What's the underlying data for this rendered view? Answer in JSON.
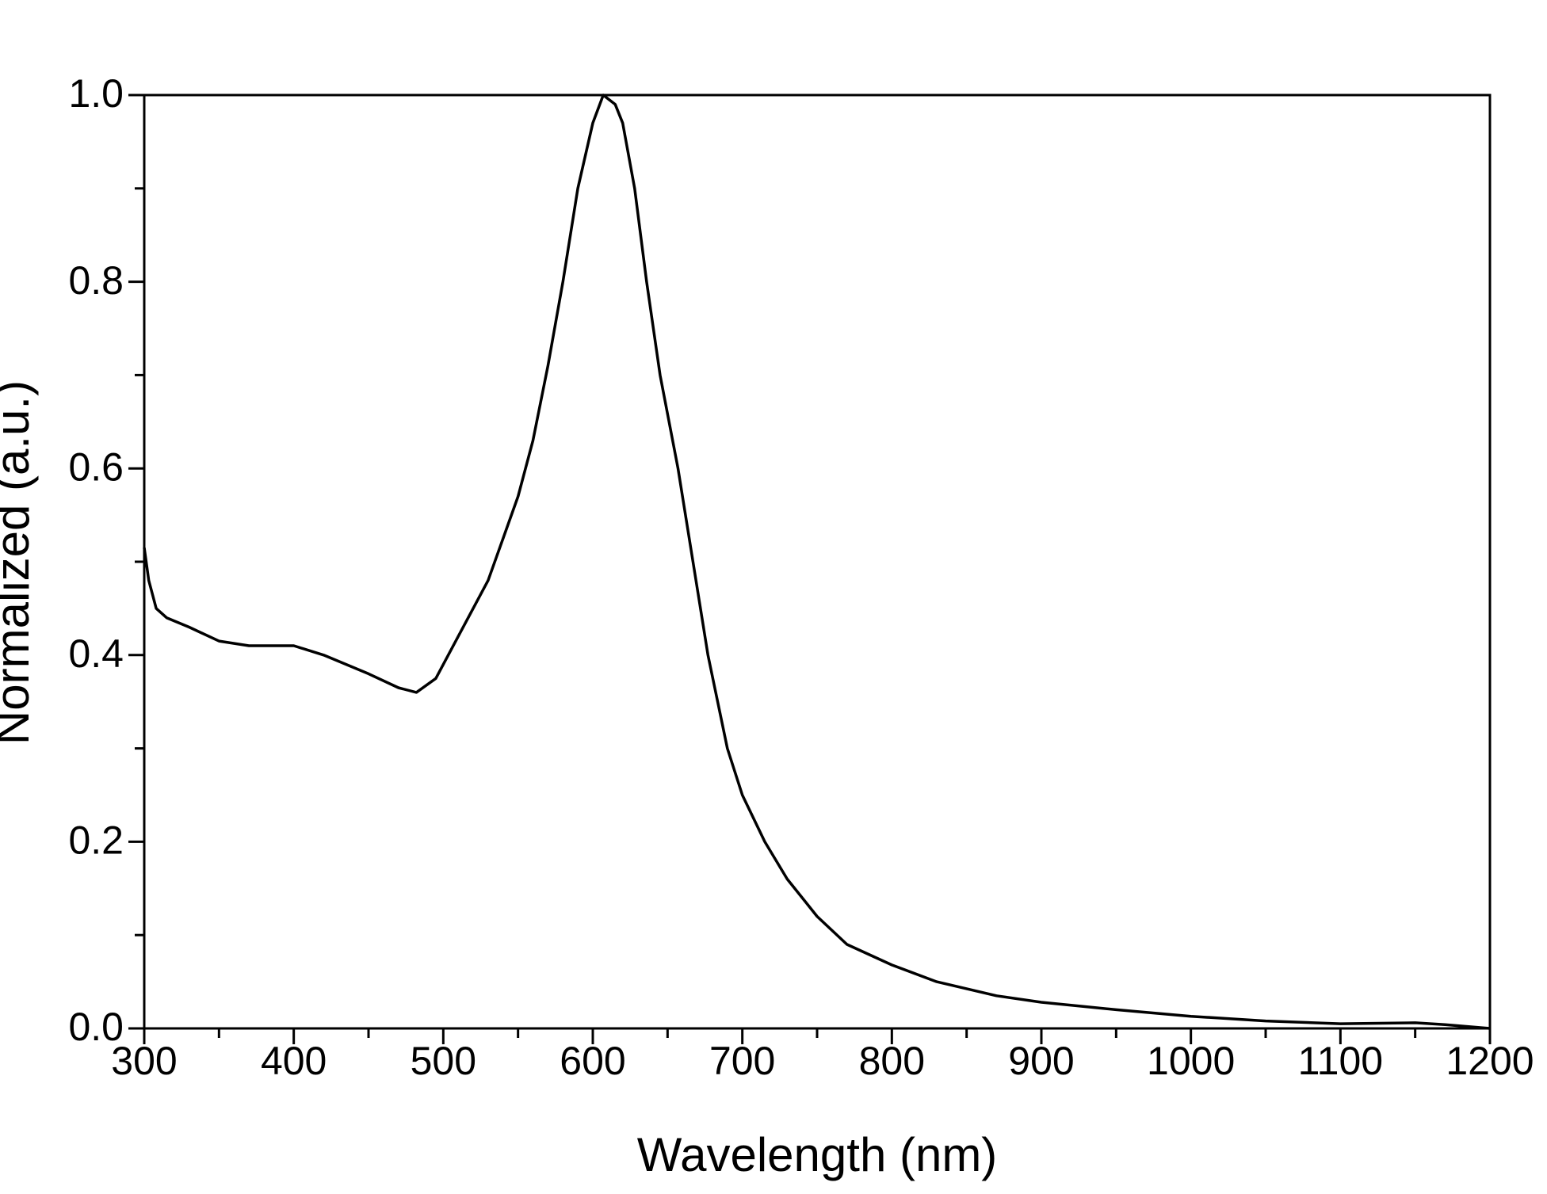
{
  "chart_data": {
    "type": "line",
    "xlabel": "Wavelength (nm)",
    "ylabel": "Normalized (a.u.)",
    "x": [
      300,
      303,
      308,
      315,
      330,
      350,
      370,
      400,
      420,
      450,
      470,
      482,
      495,
      510,
      530,
      550,
      560,
      570,
      580,
      590,
      600,
      607,
      615,
      620,
      628,
      636,
      645,
      657,
      667,
      677,
      690,
      700,
      715,
      730,
      750,
      770,
      800,
      830,
      870,
      900,
      950,
      1000,
      1050,
      1100,
      1150,
      1170,
      1200
    ],
    "series": [
      {
        "color": "#000000",
        "values": [
          0.515,
          0.48,
          0.45,
          0.44,
          0.43,
          0.415,
          0.41,
          0.41,
          0.4,
          0.38,
          0.365,
          0.36,
          0.375,
          0.42,
          0.48,
          0.57,
          0.63,
          0.71,
          0.8,
          0.9,
          0.97,
          1.0,
          0.99,
          0.97,
          0.9,
          0.8,
          0.7,
          0.6,
          0.5,
          0.4,
          0.3,
          0.25,
          0.2,
          0.16,
          0.12,
          0.09,
          0.068,
          0.05,
          0.035,
          0.028,
          0.02,
          0.013,
          0.008,
          0.005,
          0.006,
          0.004,
          0.0
        ]
      }
    ],
    "xlim": [
      300,
      1200
    ],
    "ylim": [
      0,
      1
    ],
    "xticks": [
      300,
      400,
      500,
      600,
      700,
      800,
      900,
      1000,
      1100,
      1200
    ],
    "xminorticks": [
      350,
      450,
      550,
      650,
      750,
      850,
      950,
      1050,
      1150
    ],
    "yticks": [
      {
        "value": 0,
        "label": "0.0"
      },
      0.2,
      0.4,
      0.6,
      0.8,
      {
        "value": 1,
        "label": "1.0"
      }
    ],
    "yminorticks": [
      0.1,
      0.3,
      0.5,
      0.7,
      0.9
    ],
    "grid": false
  }
}
